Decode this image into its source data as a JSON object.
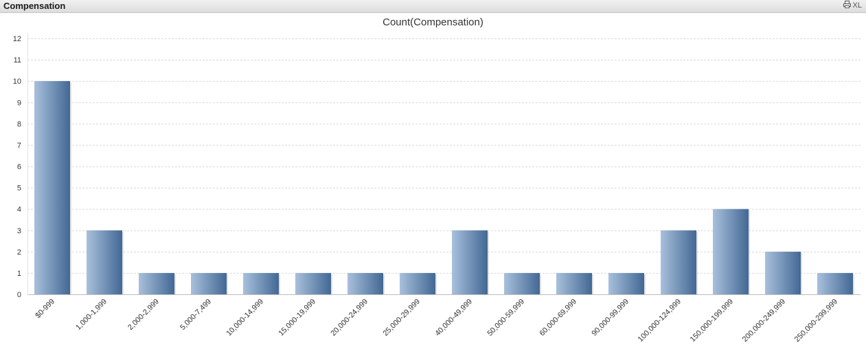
{
  "window": {
    "title": "Compensation",
    "print_icon": "printer-icon",
    "export_label": "XL"
  },
  "colors": {
    "bar_light": "#a9c0dc",
    "bar_dark": "#426894",
    "grid": "#d9d9d9",
    "axis_text": "#333333"
  },
  "chart_data": {
    "type": "bar",
    "title": "Count(Compensation)",
    "xlabel": "",
    "ylabel": "",
    "ylim": [
      0,
      12
    ],
    "yticks": [
      0,
      1,
      2,
      3,
      4,
      5,
      6,
      7,
      8,
      9,
      10,
      11,
      12
    ],
    "grid": true,
    "categories": [
      "$0-999",
      "1,000-1,999",
      "2,000-2,999",
      "5,000-7,499",
      "10,000-14,999",
      "15,000-19,999",
      "20,000-24,999",
      "25,000-29,999",
      "40,000-49,999",
      "50,000-59,999",
      "60,000-69,999",
      "90,000-99,999",
      "100,000-124,999",
      "150,000-199,999",
      "200,000-249,999",
      "250,000-299,999"
    ],
    "values": [
      10,
      3,
      1,
      1,
      1,
      1,
      1,
      1,
      3,
      1,
      1,
      1,
      3,
      4,
      2,
      1
    ]
  }
}
